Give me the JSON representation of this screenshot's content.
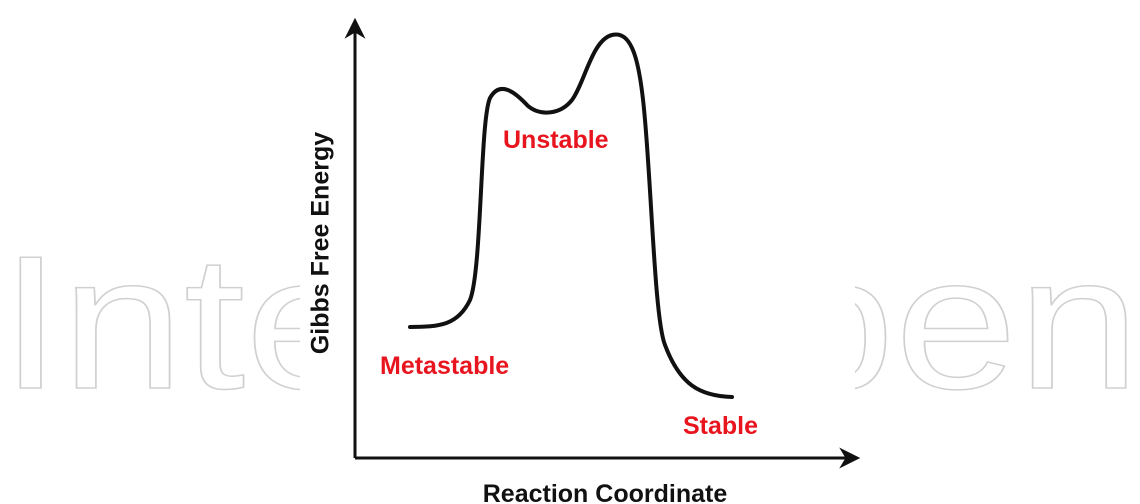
{
  "watermark": "IntechOpen",
  "axes": {
    "y_label": "Gibbs Free Energy",
    "x_label": "Reaction Coordinate"
  },
  "states": {
    "metastable": "Metastable",
    "unstable": "Unstable",
    "stable": "Stable"
  }
}
